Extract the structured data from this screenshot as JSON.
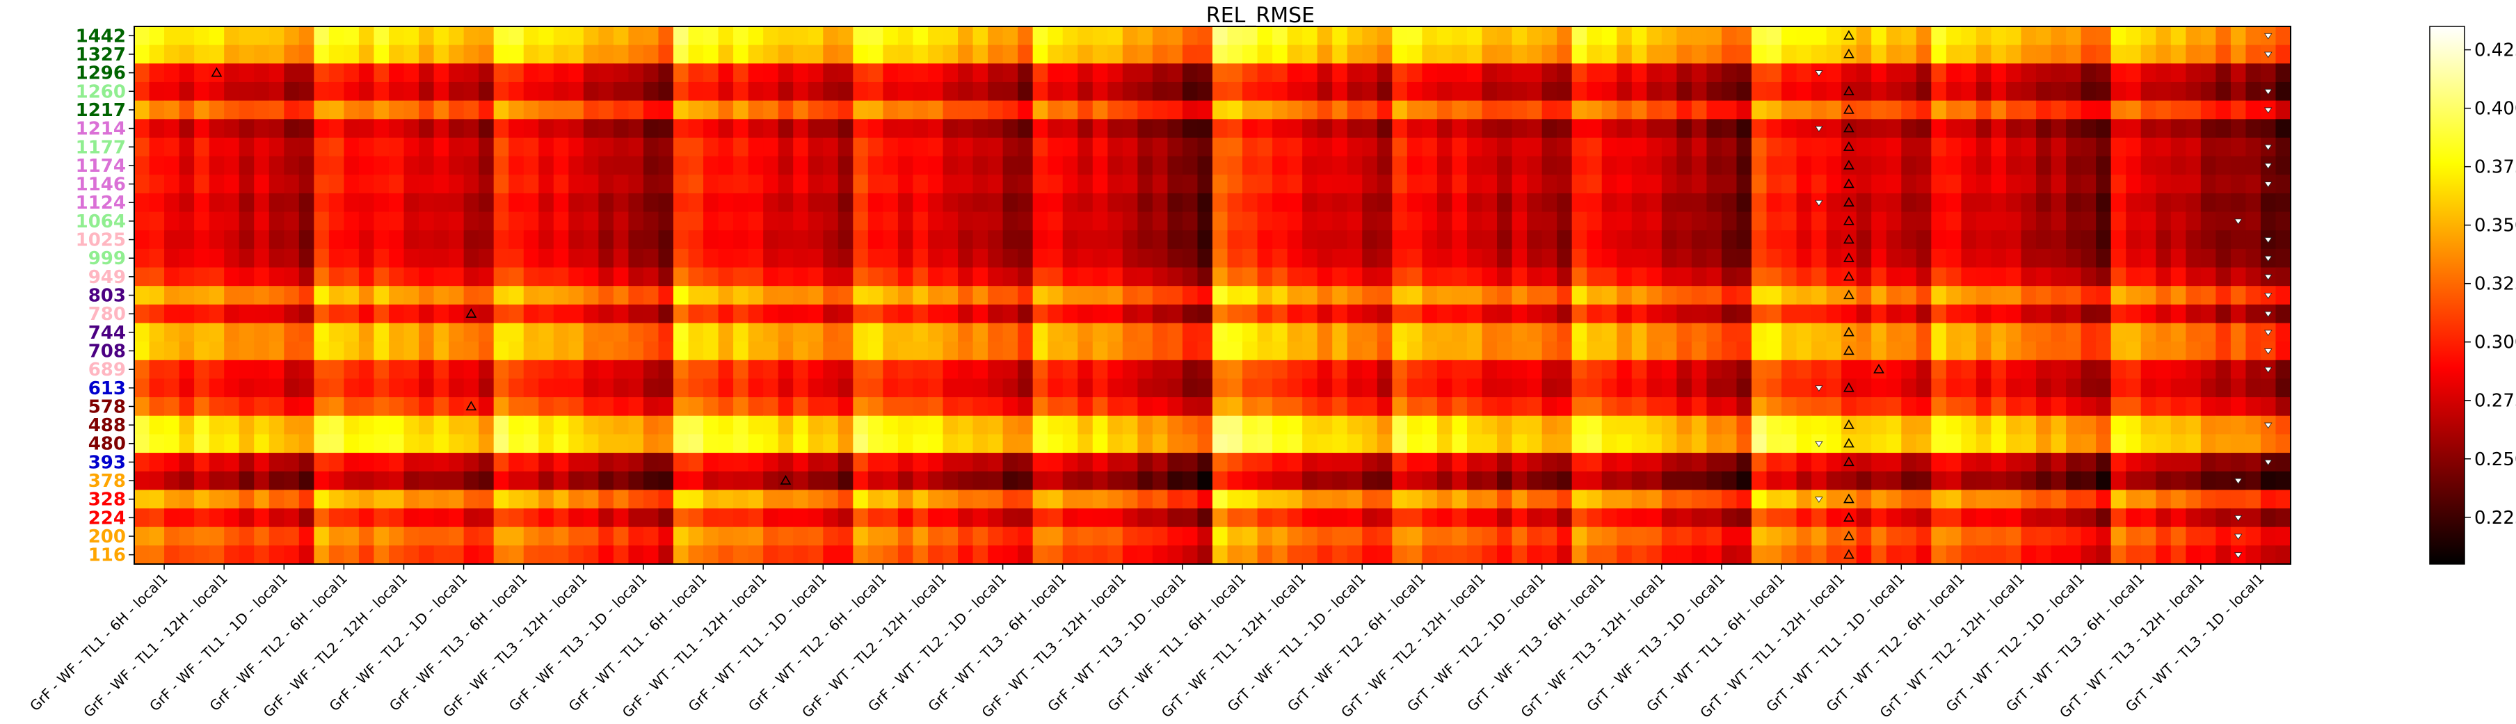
{
  "chart_data": {
    "type": "heatmap",
    "title": "REL_RMSE",
    "xlabel": "",
    "ylabel": "",
    "grid": false,
    "colormap": "hot",
    "colorbar": {
      "min": 0.205,
      "max": 0.435,
      "ticks": [
        "0.225",
        "0.250",
        "0.275",
        "0.300",
        "0.325",
        "0.350",
        "0.375",
        "0.400",
        "0.425"
      ],
      "tick_values": [
        0.225,
        0.25,
        0.275,
        0.3,
        0.325,
        0.35,
        0.375,
        0.4,
        0.425
      ]
    },
    "rows": [
      {
        "label": "1442",
        "color": "#006400",
        "base": 0.36
      },
      {
        "label": "1327",
        "color": "#006400",
        "base": 0.35
      },
      {
        "label": "1296",
        "color": "#006400",
        "base": 0.28
      },
      {
        "label": "1260",
        "color": "#90ee90",
        "base": 0.27
      },
      {
        "label": "1217",
        "color": "#006400",
        "base": 0.32
      },
      {
        "label": "1214",
        "color": "#da70d6",
        "base": 0.265
      },
      {
        "label": "1177",
        "color": "#90ee90",
        "base": 0.28
      },
      {
        "label": "1174",
        "color": "#da70d6",
        "base": 0.275
      },
      {
        "label": "1146",
        "color": "#da70d6",
        "base": 0.28
      },
      {
        "label": "1124",
        "color": "#da70d6",
        "base": 0.27
      },
      {
        "label": "1064",
        "color": "#90ee90",
        "base": 0.275
      },
      {
        "label": "1025",
        "color": "#ffb6c1",
        "base": 0.27
      },
      {
        "label": "999",
        "color": "#90ee90",
        "base": 0.275
      },
      {
        "label": "949",
        "color": "#ffb6c1",
        "base": 0.29
      },
      {
        "label": "803",
        "color": "#4b0082",
        "base": 0.335
      },
      {
        "label": "780",
        "color": "#ffb6c1",
        "base": 0.285
      },
      {
        "label": "744",
        "color": "#4b0082",
        "base": 0.34
      },
      {
        "label": "708",
        "color": "#4b0082",
        "base": 0.34
      },
      {
        "label": "689",
        "color": "#ffb6c1",
        "base": 0.29
      },
      {
        "label": "613",
        "color": "#0000cd",
        "base": 0.285
      },
      {
        "label": "578",
        "color": "#800000",
        "base": 0.305
      },
      {
        "label": "488",
        "color": "#800000",
        "base": 0.36
      },
      {
        "label": "480",
        "color": "#800000",
        "base": 0.365
      },
      {
        "label": "393",
        "color": "#0000cd",
        "base": 0.275
      },
      {
        "label": "378",
        "color": "#ffa500",
        "base": 0.255
      },
      {
        "label": "328",
        "color": "#ff0000",
        "base": 0.335
      },
      {
        "label": "224",
        "color": "#ff0000",
        "base": 0.285
      },
      {
        "label": "200",
        "color": "#ffa500",
        "base": 0.32
      },
      {
        "label": "116",
        "color": "#ffa500",
        "base": 0.305
      }
    ],
    "columns": [
      "GrF - WF - TL1 - 6H - local1",
      "GrF - WF - TL1 - 12H - local1",
      "GrF - WF - TL1 - 1D - local1",
      "GrF - WF - TL2 - 6H - local1",
      "GrF - WF - TL2 - 12H - local1",
      "GrF - WF - TL2 - 1D - local1",
      "GrF - WF - TL3 - 6H - local1",
      "GrF - WF - TL3 - 12H - local1",
      "GrF - WF - TL3 - 1D - local1",
      "GrF - WT - TL1 - 6H - local1",
      "GrF - WT - TL1 - 12H - local1",
      "GrF - WT - TL1 - 1D - local1",
      "GrF - WT - TL2 - 6H - local1",
      "GrF - WT - TL2 - 12H - local1",
      "GrF - WT - TL2 - 1D - local1",
      "GrF - WT - TL3 - 6H - local1",
      "GrF - WT - TL3 - 12H - local1",
      "GrF - WT - TL3 - 1D - local1",
      "GrT - WF - TL1 - 6H - local1",
      "GrT - WF - TL1 - 12H - local1",
      "GrT - WF - TL1 - 1D - local1",
      "GrT - WF - TL2 - 6H - local1",
      "GrT - WF - TL2 - 12H - local1",
      "GrT - WF - TL2 - 1D - local1",
      "GrT - WF - TL3 - 6H - local1",
      "GrT - WF - TL3 - 12H - local1",
      "GrT - WF - TL3 - 1D - local1",
      "GrT - WT - TL1 - 6H - local1",
      "GrT - WT - TL1 - 12H - local1",
      "GrT - WT - TL1 - 1D - local1",
      "GrT - WT - TL2 - 6H - local1",
      "GrT - WT - TL2 - 12H - local1",
      "GrT - WT - TL2 - 1D - local1",
      "GrT - WT - TL3 - 6H - local1",
      "GrT - WT - TL3 - 12H - local1",
      "GrT - WT - TL3 - 1D - local1"
    ],
    "sub_columns_per_column": 4,
    "group_offsets": [
      0.015,
      0.005,
      -0.01,
      0.02,
      0.01,
      -0.005,
      0.02,
      0.0,
      -0.02,
      0.025,
      0.01,
      -0.005,
      0.02,
      0.005,
      -0.015,
      0.01,
      -0.005,
      -0.03,
      0.035,
      0.01,
      -0.005,
      0.015,
      0.0,
      -0.01,
      0.015,
      -0.005,
      -0.025,
      0.025,
      0.005,
      -0.005,
      0.01,
      -0.005,
      -0.025,
      0.005,
      -0.015,
      -0.03
    ],
    "sub_offsets": [
      0.012,
      0.004,
      -0.004,
      -0.012
    ],
    "markers": [
      {
        "row": "1442",
        "sub_column": 114,
        "symbol": "up"
      },
      {
        "row": "1442",
        "sub_column": 142,
        "symbol": "down"
      },
      {
        "row": "1327",
        "sub_column": 114,
        "symbol": "up"
      },
      {
        "row": "1327",
        "sub_column": 142,
        "symbol": "down"
      },
      {
        "row": "1296",
        "sub_column": 5,
        "symbol": "up"
      },
      {
        "row": "1296",
        "sub_column": 112,
        "symbol": "down"
      },
      {
        "row": "1260",
        "sub_column": 114,
        "symbol": "up"
      },
      {
        "row": "1260",
        "sub_column": 142,
        "symbol": "down"
      },
      {
        "row": "1217",
        "sub_column": 114,
        "symbol": "up"
      },
      {
        "row": "1217",
        "sub_column": 142,
        "symbol": "down"
      },
      {
        "row": "1214",
        "sub_column": 112,
        "symbol": "down"
      },
      {
        "row": "1214",
        "sub_column": 114,
        "symbol": "up"
      },
      {
        "row": "1177",
        "sub_column": 114,
        "symbol": "up"
      },
      {
        "row": "1177",
        "sub_column": 142,
        "symbol": "down"
      },
      {
        "row": "1174",
        "sub_column": 114,
        "symbol": "up"
      },
      {
        "row": "1174",
        "sub_column": 142,
        "symbol": "down"
      },
      {
        "row": "1146",
        "sub_column": 114,
        "symbol": "up"
      },
      {
        "row": "1146",
        "sub_column": 142,
        "symbol": "down"
      },
      {
        "row": "1124",
        "sub_column": 112,
        "symbol": "down"
      },
      {
        "row": "1124",
        "sub_column": 114,
        "symbol": "up"
      },
      {
        "row": "1064",
        "sub_column": 114,
        "symbol": "up"
      },
      {
        "row": "1064",
        "sub_column": 140,
        "symbol": "down"
      },
      {
        "row": "1025",
        "sub_column": 114,
        "symbol": "up"
      },
      {
        "row": "1025",
        "sub_column": 142,
        "symbol": "down"
      },
      {
        "row": "999",
        "sub_column": 114,
        "symbol": "up"
      },
      {
        "row": "999",
        "sub_column": 142,
        "symbol": "down"
      },
      {
        "row": "949",
        "sub_column": 114,
        "symbol": "up"
      },
      {
        "row": "949",
        "sub_column": 142,
        "symbol": "down"
      },
      {
        "row": "803",
        "sub_column": 114,
        "symbol": "up"
      },
      {
        "row": "803",
        "sub_column": 142,
        "symbol": "down"
      },
      {
        "row": "780",
        "sub_column": 22,
        "symbol": "up"
      },
      {
        "row": "780",
        "sub_column": 142,
        "symbol": "down"
      },
      {
        "row": "744",
        "sub_column": 114,
        "symbol": "up"
      },
      {
        "row": "744",
        "sub_column": 142,
        "symbol": "down"
      },
      {
        "row": "708",
        "sub_column": 114,
        "symbol": "up"
      },
      {
        "row": "708",
        "sub_column": 142,
        "symbol": "down"
      },
      {
        "row": "689",
        "sub_column": 116,
        "symbol": "up"
      },
      {
        "row": "689",
        "sub_column": 142,
        "symbol": "down"
      },
      {
        "row": "613",
        "sub_column": 112,
        "symbol": "down"
      },
      {
        "row": "613",
        "sub_column": 114,
        "symbol": "up"
      },
      {
        "row": "578",
        "sub_column": 22,
        "symbol": "up"
      },
      {
        "row": "488",
        "sub_column": 114,
        "symbol": "up"
      },
      {
        "row": "488",
        "sub_column": 142,
        "symbol": "down"
      },
      {
        "row": "480",
        "sub_column": 112,
        "symbol": "down"
      },
      {
        "row": "480",
        "sub_column": 114,
        "symbol": "up"
      },
      {
        "row": "393",
        "sub_column": 114,
        "symbol": "up"
      },
      {
        "row": "393",
        "sub_column": 142,
        "symbol": "down"
      },
      {
        "row": "378",
        "sub_column": 43,
        "symbol": "up"
      },
      {
        "row": "378",
        "sub_column": 140,
        "symbol": "down"
      },
      {
        "row": "328",
        "sub_column": 112,
        "symbol": "down"
      },
      {
        "row": "328",
        "sub_column": 114,
        "symbol": "up"
      },
      {
        "row": "224",
        "sub_column": 114,
        "symbol": "up"
      },
      {
        "row": "224",
        "sub_column": 140,
        "symbol": "down"
      },
      {
        "row": "200",
        "sub_column": 114,
        "symbol": "up"
      },
      {
        "row": "200",
        "sub_column": 140,
        "symbol": "down"
      },
      {
        "row": "116",
        "sub_column": 114,
        "symbol": "up"
      },
      {
        "row": "116",
        "sub_column": 140,
        "symbol": "down"
      }
    ]
  }
}
